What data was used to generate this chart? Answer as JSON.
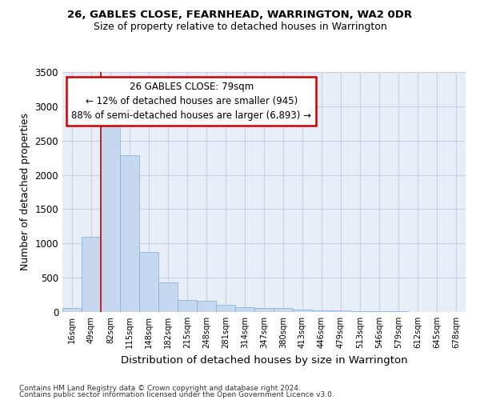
{
  "title1": "26, GABLES CLOSE, FEARNHEAD, WARRINGTON, WA2 0DR",
  "title2": "Size of property relative to detached houses in Warrington",
  "xlabel": "Distribution of detached houses by size in Warrington",
  "ylabel": "Number of detached properties",
  "categories": [
    "16sqm",
    "49sqm",
    "82sqm",
    "115sqm",
    "148sqm",
    "182sqm",
    "215sqm",
    "248sqm",
    "281sqm",
    "314sqm",
    "347sqm",
    "380sqm",
    "413sqm",
    "446sqm",
    "479sqm",
    "513sqm",
    "546sqm",
    "579sqm",
    "612sqm",
    "645sqm",
    "678sqm"
  ],
  "values": [
    55,
    1100,
    2730,
    2290,
    870,
    430,
    175,
    165,
    100,
    65,
    55,
    55,
    35,
    25,
    20,
    15,
    10,
    10,
    5,
    5,
    5
  ],
  "bar_color": "#c5d8f0",
  "bar_edge_color": "#7aadd4",
  "bg_color": "#e8eef8",
  "grid_color": "#c8cfe0",
  "annotation_line1": "26 GABLES CLOSE: 79sqm",
  "annotation_line2": "← 12% of detached houses are smaller (945)",
  "annotation_line3": "88% of semi-detached houses are larger (6,893) →",
  "annotation_box_color": "#ffffff",
  "annotation_box_edge": "#cc0000",
  "vline_x_index": 2.0,
  "vline_color": "#cc0000",
  "footer1": "Contains HM Land Registry data © Crown copyright and database right 2024.",
  "footer2": "Contains public sector information licensed under the Open Government Licence v3.0.",
  "ylim": [
    0,
    3500
  ],
  "yticks": [
    0,
    500,
    1000,
    1500,
    2000,
    2500,
    3000,
    3500
  ]
}
